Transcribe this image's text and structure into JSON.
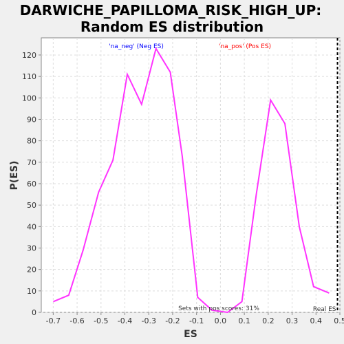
{
  "chart_data": {
    "type": "line",
    "title_line1": "DARWICHE_PAPILLOMA_RISK_HIGH_UP:",
    "title_line2": "Random ES distribution",
    "xlabel": "ES",
    "ylabel": "P(ES)",
    "xlim": [
      -0.75,
      0.5
    ],
    "ylim": [
      0,
      128
    ],
    "x_ticks": [
      "-0.7",
      "-0.6",
      "-0.5",
      "-0.4",
      "-0.3",
      "-0.2",
      "-0.1",
      "0.0",
      "0.1",
      "0.2",
      "0.3",
      "0.4",
      "0.5"
    ],
    "y_ticks": [
      "0",
      "10",
      "20",
      "30",
      "40",
      "50",
      "60",
      "70",
      "80",
      "90",
      "100",
      "110",
      "120"
    ],
    "grid": true,
    "series": [
      {
        "color": "#ff33ff",
        "x": [
          -0.7,
          -0.635,
          -0.575,
          -0.51,
          -0.45,
          -0.39,
          -0.33,
          -0.27,
          -0.21,
          -0.16,
          -0.095,
          -0.035,
          0.03,
          0.09,
          0.15,
          0.21,
          0.27,
          0.33,
          0.39,
          0.455
        ],
        "y": [
          5,
          8,
          29,
          56,
          71,
          111,
          97,
          123,
          112,
          73,
          7,
          1,
          0,
          5,
          55,
          99,
          88,
          40,
          12,
          9
        ]
      }
    ],
    "annotations": {
      "neg_label": "'na_neg' (Neg ES)",
      "neg_color": "#0000ff",
      "pos_label": "'na_pos' (Pos ES)",
      "pos_color": "#ff0000",
      "pos_scores_text": "Sets with pos scores: 31%",
      "real_es_label": "Real ES",
      "real_es_value": 0.49
    }
  }
}
